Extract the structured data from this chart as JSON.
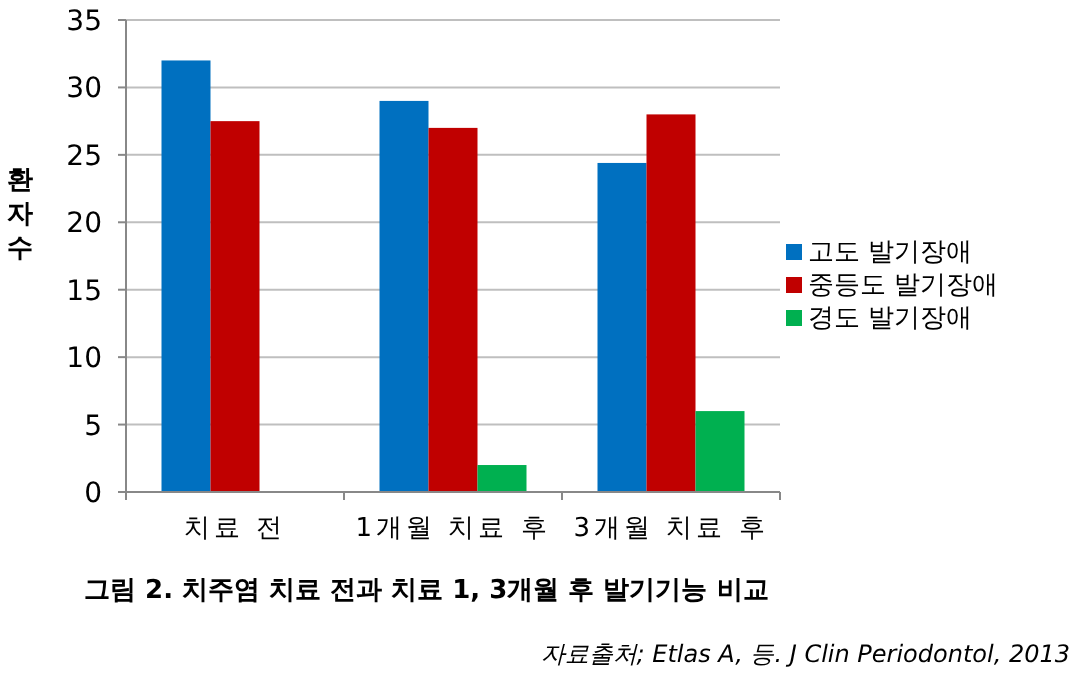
{
  "chart_data": {
    "type": "bar",
    "ylabel": "환자 수",
    "categories": [
      "치료 전",
      "1개월 치료 후",
      "3개월 치료 후"
    ],
    "series": [
      {
        "name": "고도 발기장애",
        "color": "#0070c0",
        "values": [
          32,
          29,
          24.4
        ]
      },
      {
        "name": "중등도 발기장애",
        "color": "#c00000",
        "values": [
          27.5,
          27,
          28
        ]
      },
      {
        "name": "경도 발기장애",
        "color": "#00b050",
        "values": [
          null,
          2,
          6
        ]
      }
    ],
    "ylim": [
      0,
      35
    ],
    "yticks": [
      0,
      5,
      10,
      15,
      20,
      25,
      30,
      35
    ],
    "grid": "y",
    "legend": "right",
    "annotations": [
      "그림 2. 치주염 치료 전과 치료 1, 3개월 후 발기기능 비교",
      "자료출처; Etlas A, 등. J Clin Periodontol, 2013"
    ]
  }
}
